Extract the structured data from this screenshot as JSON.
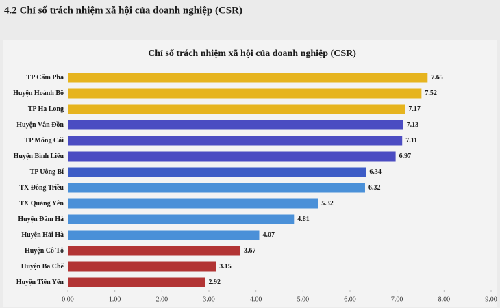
{
  "heading": "4.2 Chỉ số trách nhiệm xã hội của doanh nghiệp (CSR)",
  "chart_data": {
    "type": "hbar",
    "title": "Chỉ số trách nhiệm xã hội của doanh nghiệp (CSR)",
    "categories": [
      "TP Cẩm Phả",
      "Huyện Hoành Bồ",
      "TP Hạ Long",
      "Huyện Vân Đồn",
      "TP Móng Cái",
      "Huyện Bình Liêu",
      "TP Uông Bí",
      "TX Đông Triều",
      "TX Quảng Yên",
      "Huyện Đầm Hà",
      "Huyện Hải Hà",
      "Huyện Cô Tô",
      "Huyện Ba Chẽ",
      "Huyện Tiên Yên"
    ],
    "values": [
      7.65,
      7.52,
      7.17,
      7.13,
      7.11,
      6.97,
      6.34,
      6.32,
      5.32,
      4.81,
      4.07,
      3.67,
      3.15,
      2.92
    ],
    "colors": [
      "#e6b41e",
      "#e6b41e",
      "#e6b41e",
      "#4b4cc2",
      "#4b4cc2",
      "#4b4cc2",
      "#3d5cc6",
      "#4a90d8",
      "#4a90d8",
      "#4a90d8",
      "#4a90d8",
      "#b23434",
      "#b23434",
      "#b23434"
    ],
    "xlim": [
      0,
      9
    ],
    "xticks": [
      {
        "value": 0,
        "label": "0.00"
      },
      {
        "value": 1,
        "label": "1.00"
      },
      {
        "value": 2,
        "label": "2.00"
      },
      {
        "value": 3,
        "label": "3.00"
      },
      {
        "value": 4,
        "label": "4.00"
      },
      {
        "value": 5,
        "label": "5.00"
      },
      {
        "value": 6,
        "label": "6.00"
      },
      {
        "value": 7,
        "label": "7.00"
      },
      {
        "value": 8,
        "label": "8.00"
      },
      {
        "value": 9,
        "label": "9.00"
      }
    ]
  }
}
